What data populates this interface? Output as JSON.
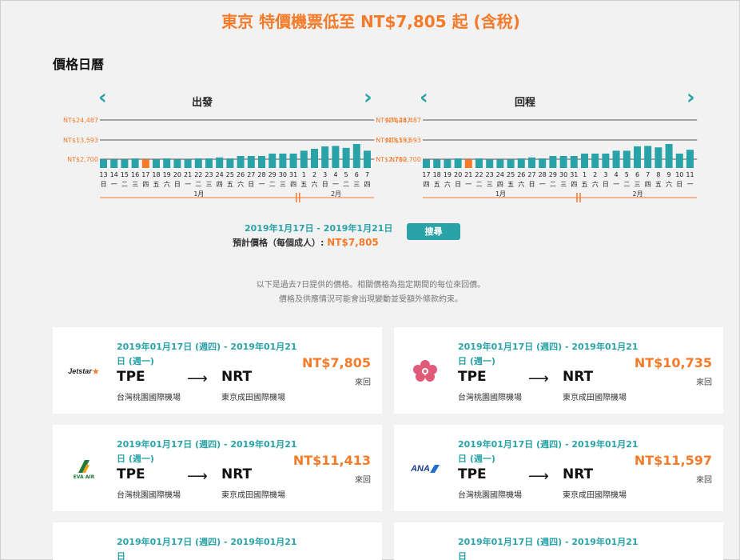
{
  "headline": "東京 特價機票低至 NT$7,805 起 (含稅)",
  "section_title": "價格日曆",
  "calendar": {
    "price_levels": [
      "NT$24,487",
      "NT$13,593",
      "NT$2,700"
    ],
    "selected_color": "#f47b2a",
    "bar_color": "#2aa3a8",
    "outbound": {
      "label": "出發",
      "days": [
        "13",
        "14",
        "15",
        "16",
        "17",
        "18",
        "19",
        "20",
        "21",
        "22",
        "23",
        "24",
        "25",
        "26",
        "27",
        "28",
        "29",
        "30",
        "31",
        "1",
        "2",
        "3",
        "4",
        "5",
        "6",
        "7"
      ],
      "weekdays": [
        "日",
        "一",
        "二",
        "三",
        "四",
        "五",
        "六",
        "日",
        "一",
        "二",
        "三",
        "四",
        "五",
        "六",
        "日",
        "一",
        "二",
        "三",
        "四",
        "五",
        "六",
        "日",
        "一",
        "二",
        "三",
        "四"
      ],
      "levels": [
        0.18,
        0.18,
        0.18,
        0.2,
        0.18,
        0.18,
        0.2,
        0.18,
        0.18,
        0.2,
        0.2,
        0.22,
        0.2,
        0.25,
        0.25,
        0.25,
        0.3,
        0.3,
        0.3,
        0.36,
        0.4,
        0.45,
        0.46,
        0.42,
        0.5,
        0.36
      ],
      "selected_index": 4,
      "month_labels": [
        "1月",
        "2月"
      ]
    },
    "return": {
      "label": "回程",
      "days": [
        "17",
        "18",
        "19",
        "20",
        "21",
        "22",
        "23",
        "24",
        "25",
        "26",
        "27",
        "28",
        "29",
        "30",
        "31",
        "1",
        "2",
        "3",
        "4",
        "5",
        "6",
        "7",
        "8",
        "9",
        "10",
        "11"
      ],
      "weekdays": [
        "四",
        "五",
        "六",
        "日",
        "一",
        "二",
        "三",
        "四",
        "五",
        "六",
        "日",
        "一",
        "二",
        "三",
        "四",
        "五",
        "六",
        "日",
        "一",
        "二",
        "三",
        "四",
        "五",
        "六",
        "日",
        "一"
      ],
      "levels": [
        0.18,
        0.18,
        0.18,
        0.2,
        0.18,
        0.2,
        0.18,
        0.18,
        0.18,
        0.2,
        0.22,
        0.2,
        0.25,
        0.25,
        0.25,
        0.3,
        0.3,
        0.3,
        0.36,
        0.36,
        0.45,
        0.46,
        0.43,
        0.5,
        0.3,
        0.38
      ],
      "selected_index": 4,
      "month_labels": [
        "1月",
        "2月"
      ]
    }
  },
  "selection": {
    "range": "2019年1月17日 - 2019年1月21日",
    "est_label": "預計價格（每個成人）:",
    "est_price": "NT$7,805",
    "search_label": "搜尋"
  },
  "notice": {
    "line1": "以下是過去7日提供的價格。相關價格為指定期間的每位來回價。",
    "line2": "價格及供應情況可能會出現變動並受額外條款約束。"
  },
  "cards": [
    {
      "airline_icon": "jetstar-logo",
      "dates": "2019年01月17日 (週四) - 2019年01月21日 (週一)",
      "from_code": "TPE",
      "to_code": "NRT",
      "from_airport": "台灣桃園國際機場",
      "to_airport": "東京成田國際機場",
      "price": "NT$7,805",
      "trip": "來回",
      "jetstar_text": "Jetstar"
    },
    {
      "airline_icon": "china-airlines-plum-logo",
      "dates": "2019年01月17日 (週四) - 2019年01月21日 (週一)",
      "from_code": "TPE",
      "to_code": "NRT",
      "from_airport": "台灣桃園國際機場",
      "to_airport": "東京成田國際機場",
      "price": "NT$10,735",
      "trip": "來回"
    },
    {
      "airline_icon": "eva-air-logo",
      "dates": "2019年01月17日 (週四) - 2019年01月21日 (週一)",
      "from_code": "TPE",
      "to_code": "NRT",
      "from_airport": "台灣桃園國際機場",
      "to_airport": "東京成田國際機場",
      "price": "NT$11,413",
      "trip": "來回",
      "eva_text": "EVA AIR"
    },
    {
      "airline_icon": "ana-logo",
      "dates": "2019年01月17日 (週四) - 2019年01月21日 (週一)",
      "from_code": "TPE",
      "to_code": "NRT",
      "from_airport": "台灣桃園國際機場",
      "to_airport": "東京成田國際機場",
      "price": "NT$11,597",
      "trip": "來回",
      "ana_text": "ANA"
    },
    {
      "dates": "2019年01月17日 (週四) - 2019年01月21日"
    },
    {
      "dates": "2019年01月17日 (週四) - 2019年01月21日"
    }
  ]
}
